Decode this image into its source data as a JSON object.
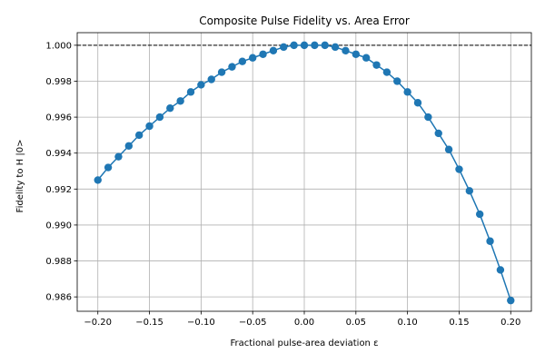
{
  "chart_data": {
    "type": "line",
    "title": "Composite Pulse Fidelity vs. Area Error",
    "xlabel": "Fractional pulse-area deviation ε",
    "ylabel": "Fidelity to H |0>",
    "xlim": [
      -0.22,
      0.22
    ],
    "ylim": [
      0.9852,
      1.0007
    ],
    "x_ticks": [
      "−0.20",
      "−0.15",
      "−0.10",
      "−0.05",
      "0.00",
      "0.05",
      "0.10",
      "0.15",
      "0.20"
    ],
    "x_tick_values": [
      -0.2,
      -0.15,
      -0.1,
      -0.05,
      0.0,
      0.05,
      0.1,
      0.15,
      0.2
    ],
    "y_ticks": [
      "0.986",
      "0.988",
      "0.990",
      "0.992",
      "0.994",
      "0.996",
      "0.998",
      "1.000"
    ],
    "y_tick_values": [
      0.986,
      0.988,
      0.99,
      0.992,
      0.994,
      0.996,
      0.998,
      1.0
    ],
    "grid": true,
    "reference_line": {
      "y": 1.0,
      "style": "dashed",
      "color": "#000000"
    },
    "series": [
      {
        "color": "#1f77b4",
        "marker": "circle",
        "x": [
          -0.2,
          -0.19,
          -0.18,
          -0.17,
          -0.16,
          -0.15,
          -0.14,
          -0.13,
          -0.12,
          -0.11,
          -0.1,
          -0.09,
          -0.08,
          -0.07,
          -0.06,
          -0.05,
          -0.04,
          -0.03,
          -0.02,
          -0.01,
          0.0,
          0.01,
          0.02,
          0.03,
          0.04,
          0.05,
          0.06,
          0.07,
          0.08,
          0.09,
          0.1,
          0.11,
          0.12,
          0.13,
          0.14,
          0.15,
          0.16,
          0.17,
          0.18,
          0.19,
          0.2
        ],
        "y": [
          0.9925,
          0.9932,
          0.9938,
          0.9944,
          0.995,
          0.9955,
          0.996,
          0.9965,
          0.9969,
          0.9974,
          0.9978,
          0.9981,
          0.9985,
          0.9988,
          0.9991,
          0.9993,
          0.9995,
          0.9997,
          0.9999,
          1.0,
          1.0,
          1.0,
          1.0,
          0.9999,
          0.9997,
          0.9995,
          0.9993,
          0.9989,
          0.9985,
          0.998,
          0.9974,
          0.9968,
          0.996,
          0.9951,
          0.9942,
          0.9931,
          0.9919,
          0.9906,
          0.9891,
          0.9875,
          0.9858
        ]
      }
    ]
  }
}
